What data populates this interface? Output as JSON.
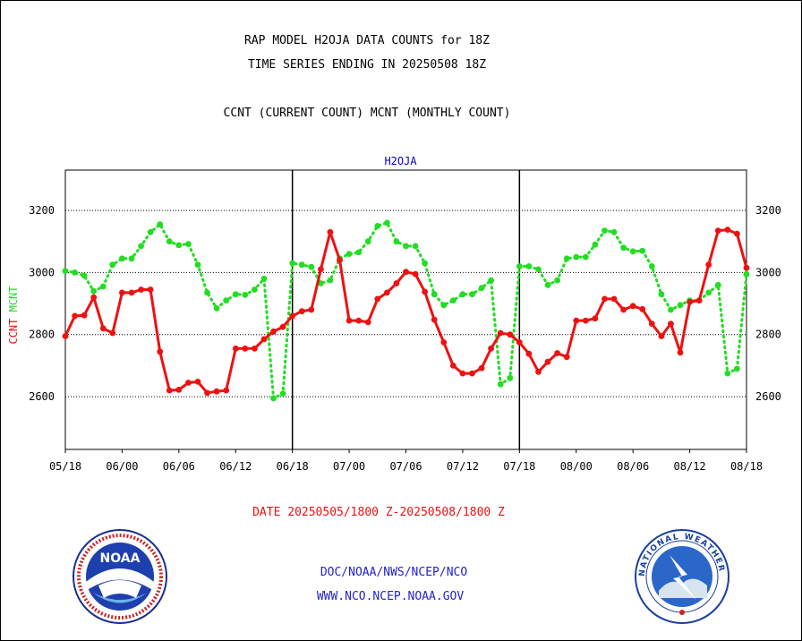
{
  "header": {
    "line1": "RAP MODEL H2OJA DATA COUNTS for 18Z",
    "line2": "TIME SERIES ENDING IN 20250508 18Z",
    "line3": "CCNT (CURRENT COUNT) MCNT (MONTHLY COUNT)"
  },
  "footer": {
    "date_range": "DATE 20250505/1800 Z-20250508/1800 Z",
    "org": "DOC/NOAA/NWS/NCEP/NCO",
    "url": "WWW.NCO.NCEP.NOAA.GOV"
  },
  "logos": {
    "left": "NOAA",
    "right": "NATIONAL WEATHER SERVICE"
  },
  "colors": {
    "ccnt": "#ee1111",
    "mcnt": "#22dd22",
    "title": "#0000cc",
    "date": "#ee1111",
    "footer": "#2222cc"
  },
  "chart_data": {
    "type": "line",
    "title": "H2OJA",
    "ylabel_left": [
      "CCNT",
      "MCNT"
    ],
    "ylim": [
      2430,
      3330
    ],
    "yticks": [
      2600,
      2800,
      3000,
      3200
    ],
    "ytick_labels": [
      "2600",
      "2800",
      "3000",
      "3200"
    ],
    "xlim": [
      0,
      72
    ],
    "xticks": [
      0,
      6,
      12,
      18,
      24,
      30,
      36,
      42,
      48,
      54,
      60,
      66,
      72
    ],
    "xtick_labels": [
      "05/18",
      "06/00",
      "06/06",
      "06/12",
      "06/18",
      "07/00",
      "07/06",
      "07/12",
      "07/18",
      "08/00",
      "08/06",
      "08/12",
      "08/18"
    ],
    "day_dividers": [
      24,
      48
    ],
    "grid": "horizontal-dotted",
    "series": [
      {
        "name": "CCNT",
        "style": "solid",
        "x": [
          0,
          1,
          2,
          3,
          4,
          5,
          6,
          7,
          8,
          9,
          10,
          11,
          12,
          13,
          14,
          15,
          16,
          17,
          18,
          19,
          20,
          21,
          22,
          23,
          24,
          25,
          26,
          27,
          28,
          29,
          30,
          31,
          32,
          33,
          34,
          35,
          36,
          37,
          38,
          39,
          40,
          41,
          42,
          43,
          44,
          45,
          46,
          47,
          48,
          49,
          50,
          51,
          52,
          53,
          54,
          55,
          56,
          57,
          58,
          59,
          60,
          61,
          62,
          63,
          64,
          65,
          66,
          67,
          68,
          69,
          70,
          71,
          72
        ],
        "values": [
          2795,
          2860,
          2862,
          2920,
          2820,
          2805,
          2935,
          2935,
          2945,
          2945,
          2745,
          2620,
          2622,
          2645,
          2648,
          2612,
          2617,
          2620,
          2755,
          2755,
          2755,
          2785,
          2810,
          2825,
          2860,
          2875,
          2880,
          3010,
          3130,
          3040,
          2845,
          2845,
          2840,
          2915,
          2935,
          2965,
          3002,
          2995,
          2938,
          2848,
          2775,
          2700,
          2675,
          2675,
          2692,
          2755,
          2805,
          2800,
          2775,
          2738,
          2680,
          2712,
          2740,
          2728,
          2845,
          2845,
          2852,
          2915,
          2915,
          2880,
          2892,
          2882,
          2835,
          2795,
          2835,
          2742,
          2905,
          2910,
          3025,
          3135,
          3138,
          3125,
          3015
        ]
      },
      {
        "name": "MCNT",
        "style": "dotted",
        "x": [
          0,
          1,
          2,
          3,
          4,
          5,
          6,
          7,
          8,
          9,
          10,
          11,
          12,
          13,
          14,
          15,
          16,
          17,
          18,
          19,
          20,
          21,
          22,
          23,
          24,
          25,
          26,
          27,
          28,
          29,
          30,
          31,
          32,
          33,
          34,
          35,
          36,
          37,
          38,
          39,
          40,
          41,
          42,
          43,
          44,
          45,
          46,
          47,
          48,
          49,
          50,
          51,
          52,
          53,
          54,
          55,
          56,
          57,
          58,
          59,
          60,
          61,
          62,
          63,
          64,
          65,
          66,
          67,
          68,
          69,
          70,
          71,
          72
        ],
        "values": [
          3005,
          3000,
          2990,
          2940,
          2955,
          3025,
          3045,
          3045,
          3085,
          3130,
          3155,
          3100,
          3088,
          3092,
          3025,
          2935,
          2885,
          2910,
          2930,
          2928,
          2945,
          2980,
          2595,
          2610,
          3030,
          3025,
          3018,
          2965,
          2975,
          3045,
          3060,
          3065,
          3100,
          3150,
          3160,
          3100,
          3085,
          3085,
          3030,
          2930,
          2895,
          2910,
          2930,
          2930,
          2950,
          2975,
          2640,
          2660,
          3020,
          3020,
          3010,
          2960,
          2975,
          3045,
          3050,
          3050,
          3090,
          3135,
          3130,
          3080,
          3068,
          3070,
          3020,
          2930,
          2880,
          2895,
          2910,
          2910,
          2935,
          2960,
          2675,
          2690,
          2995
        ]
      }
    ]
  }
}
